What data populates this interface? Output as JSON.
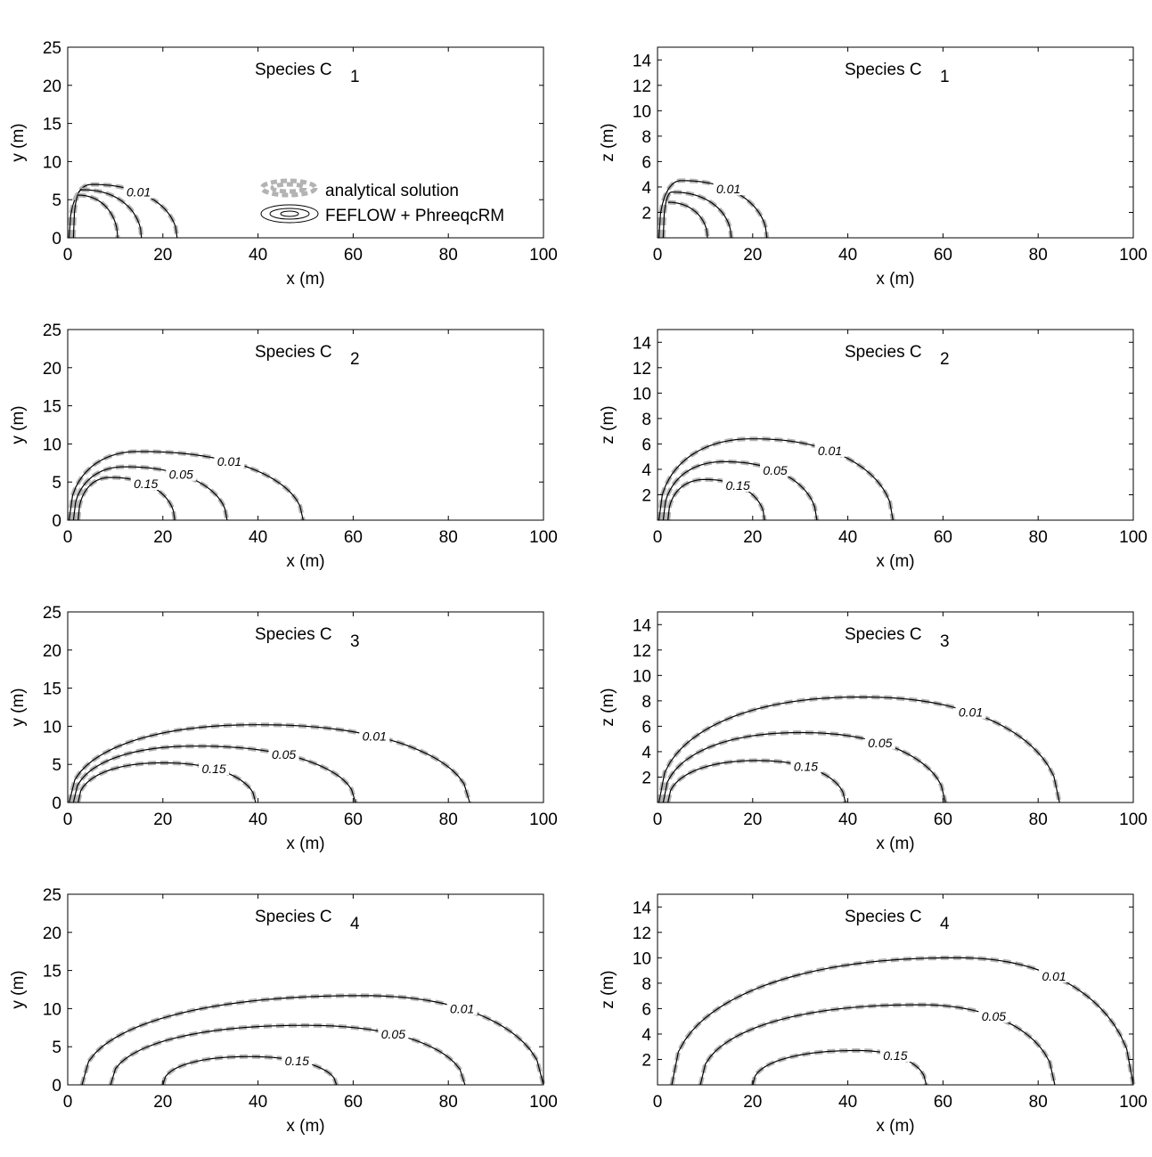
{
  "figure": {
    "legend": {
      "analytical": "analytical solution",
      "numerical": "FEFLOW + PhreeqcRM"
    }
  },
  "chart_data": [
    {
      "type": "contour",
      "title": "Species C",
      "subscript": "1",
      "xlabel": "x (m)",
      "ylabel": "y (m)",
      "xlim": [
        0,
        100
      ],
      "ylim": [
        0,
        25
      ],
      "xticks": [
        "0",
        "20",
        "40",
        "60",
        "80",
        "100"
      ],
      "yticks": [
        "0",
        "5",
        "10",
        "15",
        "20",
        "25"
      ],
      "contours": [
        {
          "level": 0.01,
          "label": "0.01",
          "x_extent": 23,
          "peak": 7.0,
          "peak_x": 5
        },
        {
          "level": 0.05,
          "label": "",
          "x_extent": 15.5,
          "peak": 6.3,
          "peak_x": 3
        },
        {
          "level": 0.15,
          "label": "",
          "x_extent": 10.5,
          "peak": 5.6,
          "peak_x": 2
        }
      ]
    },
    {
      "type": "contour",
      "title": "Species C",
      "subscript": "1",
      "xlabel": "x (m)",
      "ylabel": "z (m)",
      "xlim": [
        0,
        100
      ],
      "ylim": [
        0,
        15
      ],
      "xticks": [
        "0",
        "20",
        "40",
        "60",
        "80",
        "100"
      ],
      "yticks": [
        "2",
        "4",
        "6",
        "8",
        "10",
        "12",
        "14"
      ],
      "contours": [
        {
          "level": 0.01,
          "label": "0.01",
          "x_extent": 23,
          "peak": 4.5,
          "peak_x": 5
        },
        {
          "level": 0.05,
          "label": "",
          "x_extent": 15.5,
          "peak": 3.6,
          "peak_x": 3
        },
        {
          "level": 0.15,
          "label": "",
          "x_extent": 10.5,
          "peak": 2.8,
          "peak_x": 2
        }
      ]
    },
    {
      "type": "contour",
      "title": "Species C",
      "subscript": "2",
      "xlabel": "x (m)",
      "ylabel": "y (m)",
      "xlim": [
        0,
        100
      ],
      "ylim": [
        0,
        25
      ],
      "xticks": [
        "0",
        "20",
        "40",
        "60",
        "80",
        "100"
      ],
      "yticks": [
        "0",
        "5",
        "10",
        "15",
        "20",
        "25"
      ],
      "contours": [
        {
          "level": 0.01,
          "label": "0.01",
          "x_extent": 49.5,
          "peak": 9.0,
          "peak_x": 15
        },
        {
          "level": 0.05,
          "label": "0.05",
          "x_extent": 33.5,
          "peak": 7.0,
          "peak_x": 12
        },
        {
          "level": 0.15,
          "label": "0.15",
          "x_extent": 22.5,
          "peak": 5.6,
          "peak_x": 9
        }
      ]
    },
    {
      "type": "contour",
      "title": "Species C",
      "subscript": "2",
      "xlabel": "x (m)",
      "ylabel": "z (m)",
      "xlim": [
        0,
        100
      ],
      "ylim": [
        0,
        15
      ],
      "xticks": [
        "0",
        "20",
        "40",
        "60",
        "80",
        "100"
      ],
      "yticks": [
        "2",
        "4",
        "6",
        "8",
        "10",
        "12",
        "14"
      ],
      "contours": [
        {
          "level": 0.01,
          "label": "0.01",
          "x_extent": 49.5,
          "peak": 6.4,
          "peak_x": 20
        },
        {
          "level": 0.05,
          "label": "0.05",
          "x_extent": 33.5,
          "peak": 4.6,
          "peak_x": 14
        },
        {
          "level": 0.15,
          "label": "0.15",
          "x_extent": 22.5,
          "peak": 3.2,
          "peak_x": 10
        }
      ]
    },
    {
      "type": "contour",
      "title": "Species C",
      "subscript": "3",
      "xlabel": "x (m)",
      "ylabel": "y (m)",
      "xlim": [
        0,
        100
      ],
      "ylim": [
        0,
        25
      ],
      "xticks": [
        "0",
        "20",
        "40",
        "60",
        "80",
        "100"
      ],
      "yticks": [
        "0",
        "5",
        "10",
        "15",
        "20",
        "25"
      ],
      "contours": [
        {
          "level": 0.01,
          "label": "0.01",
          "x_extent": 84.5,
          "peak": 10.2,
          "peak_x": 40
        },
        {
          "level": 0.05,
          "label": "0.05",
          "x_extent": 60.5,
          "peak": 7.4,
          "peak_x": 27
        },
        {
          "level": 0.15,
          "label": "0.15",
          "x_extent": 39.5,
          "peak": 5.2,
          "peak_x": 20
        }
      ]
    },
    {
      "type": "contour",
      "title": "Species C",
      "subscript": "3",
      "xlabel": "x (m)",
      "ylabel": "z (m)",
      "xlim": [
        0,
        100
      ],
      "ylim": [
        0,
        15
      ],
      "xticks": [
        "0",
        "20",
        "40",
        "60",
        "80",
        "100"
      ],
      "yticks": [
        "2",
        "4",
        "6",
        "8",
        "10",
        "12",
        "14"
      ],
      "contours": [
        {
          "level": 0.01,
          "label": "0.01",
          "x_extent": 84.5,
          "peak": 8.3,
          "peak_x": 43
        },
        {
          "level": 0.05,
          "label": "0.05",
          "x_extent": 60.5,
          "peak": 5.5,
          "peak_x": 30
        },
        {
          "level": 0.15,
          "label": "0.15",
          "x_extent": 39.5,
          "peak": 3.3,
          "peak_x": 21
        }
      ]
    },
    {
      "type": "contour",
      "title": "Species C",
      "subscript": "4",
      "xlabel": "x (m)",
      "ylabel": "y (m)",
      "xlim": [
        0,
        100
      ],
      "ylim": [
        0,
        25
      ],
      "xticks": [
        "0",
        "20",
        "40",
        "60",
        "80",
        "100"
      ],
      "yticks": [
        "0",
        "5",
        "10",
        "15",
        "20",
        "25"
      ],
      "contours": [
        {
          "level": 0.01,
          "label": "0.01",
          "x_extent": 100,
          "peak": 11.7,
          "peak_x": 62,
          "x_start": 3
        },
        {
          "level": 0.05,
          "label": "0.05",
          "x_extent": 83.5,
          "peak": 7.8,
          "peak_x": 50,
          "x_start": 9
        },
        {
          "level": 0.15,
          "label": "0.15",
          "x_extent": 56.5,
          "peak": 3.7,
          "peak_x": 38,
          "x_start": 20
        }
      ]
    },
    {
      "type": "contour",
      "title": "Species C",
      "subscript": "4",
      "xlabel": "x (m)",
      "ylabel": "z (m)",
      "xlim": [
        0,
        100
      ],
      "ylim": [
        0,
        15
      ],
      "xticks": [
        "0",
        "20",
        "40",
        "60",
        "80",
        "100"
      ],
      "yticks": [
        "2",
        "4",
        "6",
        "8",
        "10",
        "12",
        "14"
      ],
      "contours": [
        {
          "level": 0.01,
          "label": "0.01",
          "x_extent": 100,
          "peak": 10.0,
          "peak_x": 63,
          "x_start": 3
        },
        {
          "level": 0.05,
          "label": "0.05",
          "x_extent": 83.5,
          "peak": 6.3,
          "peak_x": 55,
          "x_start": 9
        },
        {
          "level": 0.15,
          "label": "0.15",
          "x_extent": 56.5,
          "peak": 2.7,
          "peak_x": 42,
          "x_start": 20
        }
      ]
    }
  ]
}
